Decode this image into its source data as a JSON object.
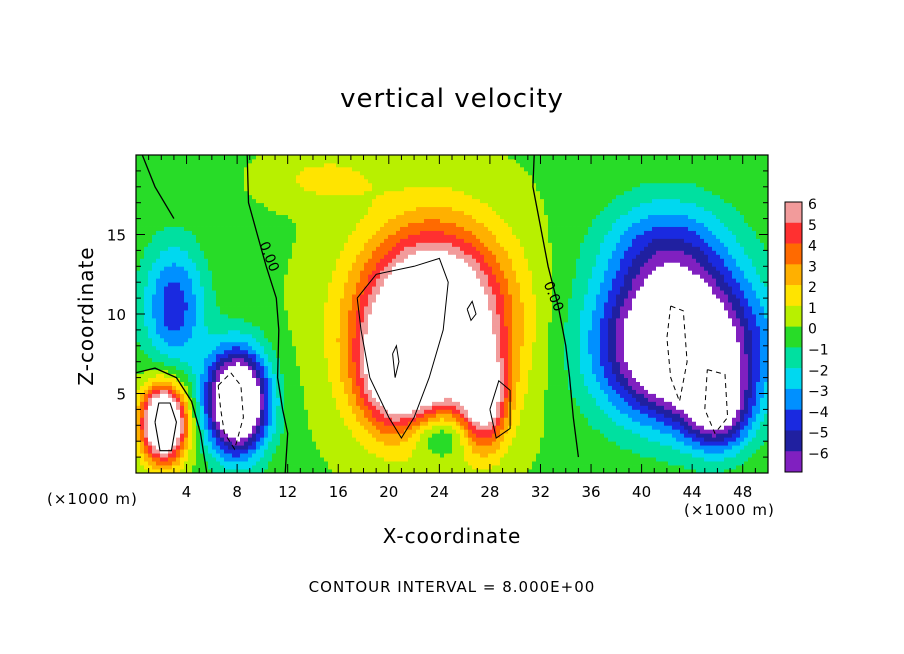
{
  "chart_data": {
    "type": "heatmap",
    "title": "vertical velocity",
    "xlabel": "X-coordinate",
    "ylabel": "Z-coordinate",
    "x_unit_left": "(×1000 m)",
    "x_unit_right": "(×1000 m)",
    "footer": "CONTOUR INTERVAL = 8.000E+00",
    "xlim": [
      0,
      50
    ],
    "ylim": [
      0,
      20
    ],
    "x_ticks": [
      4,
      8,
      12,
      16,
      20,
      24,
      28,
      32,
      36,
      40,
      44,
      48
    ],
    "y_ticks": [
      5,
      10,
      15
    ],
    "colorbar": {
      "levels": [
        6,
        5,
        4,
        3,
        2,
        1,
        0,
        -1,
        -2,
        -3,
        -4,
        -5,
        -6
      ],
      "labels": [
        "6",
        "5",
        "4",
        "3",
        "2",
        "1",
        "0",
        "−1",
        "−2",
        "−3",
        "−4",
        "−5",
        "−6"
      ],
      "colors": [
        "#f29b9b",
        "#ff3030",
        "#ff6a00",
        "#ffb000",
        "#ffe400",
        "#b8f000",
        "#28dc28",
        "#00e0a0",
        "#00d8f0",
        "#0090ff",
        "#1a2ae0",
        "#2020a0",
        "#8020c0"
      ]
    },
    "contour_labels": [
      {
        "text": "0.00",
        "x": 10.2,
        "z": 13.5
      },
      {
        "text": "0.00",
        "x": 32.7,
        "z": 11.0
      }
    ],
    "features": [
      {
        "name": "updraft-core",
        "x_range": [
          16,
          31
        ],
        "z_range": [
          1.5,
          14
        ],
        "peak": 16
      },
      {
        "name": "updraft-low-left",
        "x_range": [
          0.5,
          4
        ],
        "z_range": [
          1,
          5.5
        ],
        "peak": 12
      },
      {
        "name": "downdraft-left",
        "x_range": [
          5,
          10
        ],
        "z_range": [
          1,
          8
        ],
        "peak": -12
      },
      {
        "name": "downdraft-right",
        "x_range": [
          36,
          49
        ],
        "z_range": [
          1.5,
          13
        ],
        "peak": -14
      }
    ]
  }
}
